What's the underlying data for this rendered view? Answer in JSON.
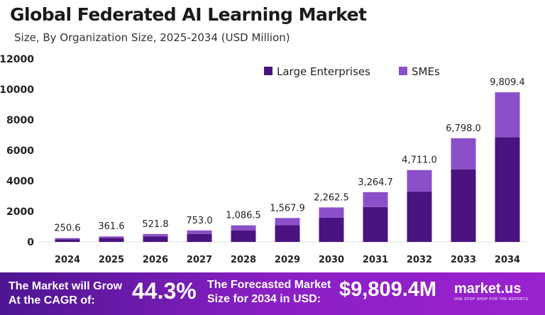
{
  "chart_data": {
    "type": "bar",
    "stacked": true,
    "title": "Global Federated AI Learning Market",
    "subtitle": "Size, By Organization Size, 2025-2034 (USD Million)",
    "categories": [
      "2024",
      "2025",
      "2026",
      "2027",
      "2028",
      "2029",
      "2030",
      "2031",
      "2032",
      "2033",
      "2034"
    ],
    "totals": [
      250.6,
      361.6,
      521.8,
      753.0,
      1086.5,
      1567.9,
      2262.5,
      3264.7,
      4711.0,
      6798.0,
      9809.4
    ],
    "total_labels": [
      "250.6",
      "361.6",
      "521.8",
      "753.0",
      "1,086.5",
      "1,567.9",
      "2,262.5",
      "3,264.7",
      "4,711.0",
      "6,798.0",
      "9,809.4"
    ],
    "series": [
      {
        "name": "Large Enterprises",
        "color": "#4a1480",
        "values": [
          175.4,
          253.1,
          365.3,
          527.1,
          760.6,
          1097.5,
          1583.8,
          2285.3,
          3297.7,
          4758.6,
          6866.6
        ]
      },
      {
        "name": "SMEs",
        "color": "#8b50c9",
        "values": [
          75.2,
          108.5,
          156.5,
          225.9,
          325.9,
          470.4,
          678.7,
          979.4,
          1413.3,
          2039.4,
          2942.8
        ]
      }
    ],
    "yticks": [
      0,
      2000,
      4000,
      6000,
      8000,
      10000,
      12000
    ],
    "ylim": [
      0,
      12000
    ],
    "grid": false,
    "legend": "top-right"
  },
  "banner": {
    "cagr_text_1": "The Market will Grow",
    "cagr_text_2": "At the CAGR of:",
    "cagr": "44.3%",
    "forecast_text_1": "The Forecasted Market",
    "forecast_text_2": "Size for 2034 in USD:",
    "forecast": "$9,809.4M",
    "logo": "market.us",
    "logo_tagline": "ONE STOP SHOP FOR THE REPORTS"
  }
}
